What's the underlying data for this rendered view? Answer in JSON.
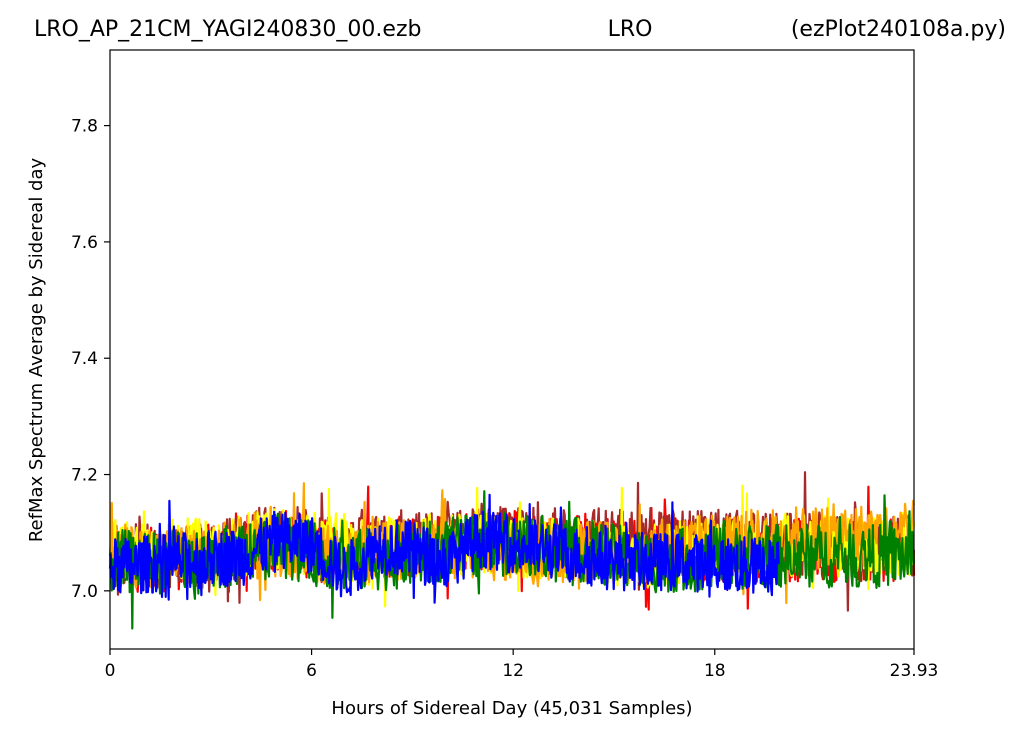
{
  "chart_data": {
    "type": "line",
    "title_left": "LRO_AP_21CM_YAGI240830_00.ezb",
    "title_center": "LRO",
    "title_right": "(ezPlot240108a.py)",
    "xlabel": "Hours of Sidereal Day  (45,031 Samples)",
    "ylabel": "RefMax Spectrum Average by Sidereal day",
    "xlim": [
      0,
      23.93
    ],
    "ylim": [
      6.9,
      7.93
    ],
    "x_ticks": [
      0,
      6,
      12,
      18,
      23.93
    ],
    "x_tick_labels": [
      "0",
      "6",
      "12",
      "18",
      "23.93"
    ],
    "y_ticks": [
      7.0,
      7.2,
      7.4,
      7.6,
      7.8
    ],
    "y_tick_labels": [
      "7.0",
      "7.2",
      "7.4",
      "7.6",
      "7.8"
    ],
    "grid": false,
    "legend": "none",
    "series": [
      {
        "color": "#ff0000",
        "x_range": [
          0,
          23.93
        ],
        "baseline": [
          [
            0,
            7.05
          ],
          [
            3,
            7.06
          ],
          [
            5,
            7.09
          ],
          [
            7,
            7.06
          ],
          [
            9,
            7.08
          ],
          [
            11,
            7.09
          ],
          [
            13,
            7.08
          ],
          [
            16,
            7.07
          ],
          [
            20,
            7.07
          ],
          [
            23.93,
            7.07
          ]
        ],
        "band": 0.11
      },
      {
        "color": "#a52a2a",
        "x_range": [
          0,
          23.93
        ],
        "baseline": [
          [
            0,
            7.06
          ],
          [
            3,
            7.06
          ],
          [
            5,
            7.1
          ],
          [
            7,
            7.07
          ],
          [
            9,
            7.08
          ],
          [
            11,
            7.09
          ],
          [
            13,
            7.09
          ],
          [
            16,
            7.09
          ],
          [
            20,
            7.08
          ],
          [
            23.93,
            7.08
          ]
        ],
        "band": 0.11
      },
      {
        "color": "#ffff00",
        "x_range": [
          0,
          23.93
        ],
        "baseline": [
          [
            0,
            7.07
          ],
          [
            3,
            7.07
          ],
          [
            5,
            7.09
          ],
          [
            7,
            7.07
          ],
          [
            9,
            7.08
          ],
          [
            11,
            7.08
          ],
          [
            13,
            7.07
          ],
          [
            16,
            7.06
          ],
          [
            20,
            7.08
          ],
          [
            23.93,
            7.08
          ]
        ],
        "band": 0.11
      },
      {
        "color": "#ffa500",
        "x_range": [
          0,
          23.93
        ],
        "baseline": [
          [
            0,
            7.06
          ],
          [
            3,
            7.06
          ],
          [
            5,
            7.08
          ],
          [
            7,
            7.06
          ],
          [
            9,
            7.07
          ],
          [
            11,
            7.07
          ],
          [
            13,
            7.07
          ],
          [
            16,
            7.07
          ],
          [
            20,
            7.09
          ],
          [
            23.93,
            7.1
          ]
        ],
        "band": 0.11
      },
      {
        "color": "#008000",
        "x_range": [
          0,
          23.93
        ],
        "baseline": [
          [
            0,
            7.05
          ],
          [
            3,
            7.05
          ],
          [
            5,
            7.08
          ],
          [
            7,
            7.05
          ],
          [
            9,
            7.06
          ],
          [
            11,
            7.08
          ],
          [
            13,
            7.08
          ],
          [
            16,
            7.05
          ],
          [
            20,
            7.06
          ],
          [
            23.93,
            7.06
          ]
        ],
        "band": 0.11
      },
      {
        "color": "#0000ff",
        "x_range": [
          0,
          19.9
        ],
        "baseline": [
          [
            0,
            7.04
          ],
          [
            2,
            7.05
          ],
          [
            4,
            7.06
          ],
          [
            5,
            7.09
          ],
          [
            6,
            7.08
          ],
          [
            7,
            7.03
          ],
          [
            8,
            7.08
          ],
          [
            9,
            7.07
          ],
          [
            10,
            7.05
          ],
          [
            11,
            7.09
          ],
          [
            12,
            7.08
          ],
          [
            13,
            7.07
          ],
          [
            15,
            7.05
          ],
          [
            17,
            7.05
          ],
          [
            19.9,
            7.04
          ]
        ],
        "band": 0.1
      }
    ]
  }
}
